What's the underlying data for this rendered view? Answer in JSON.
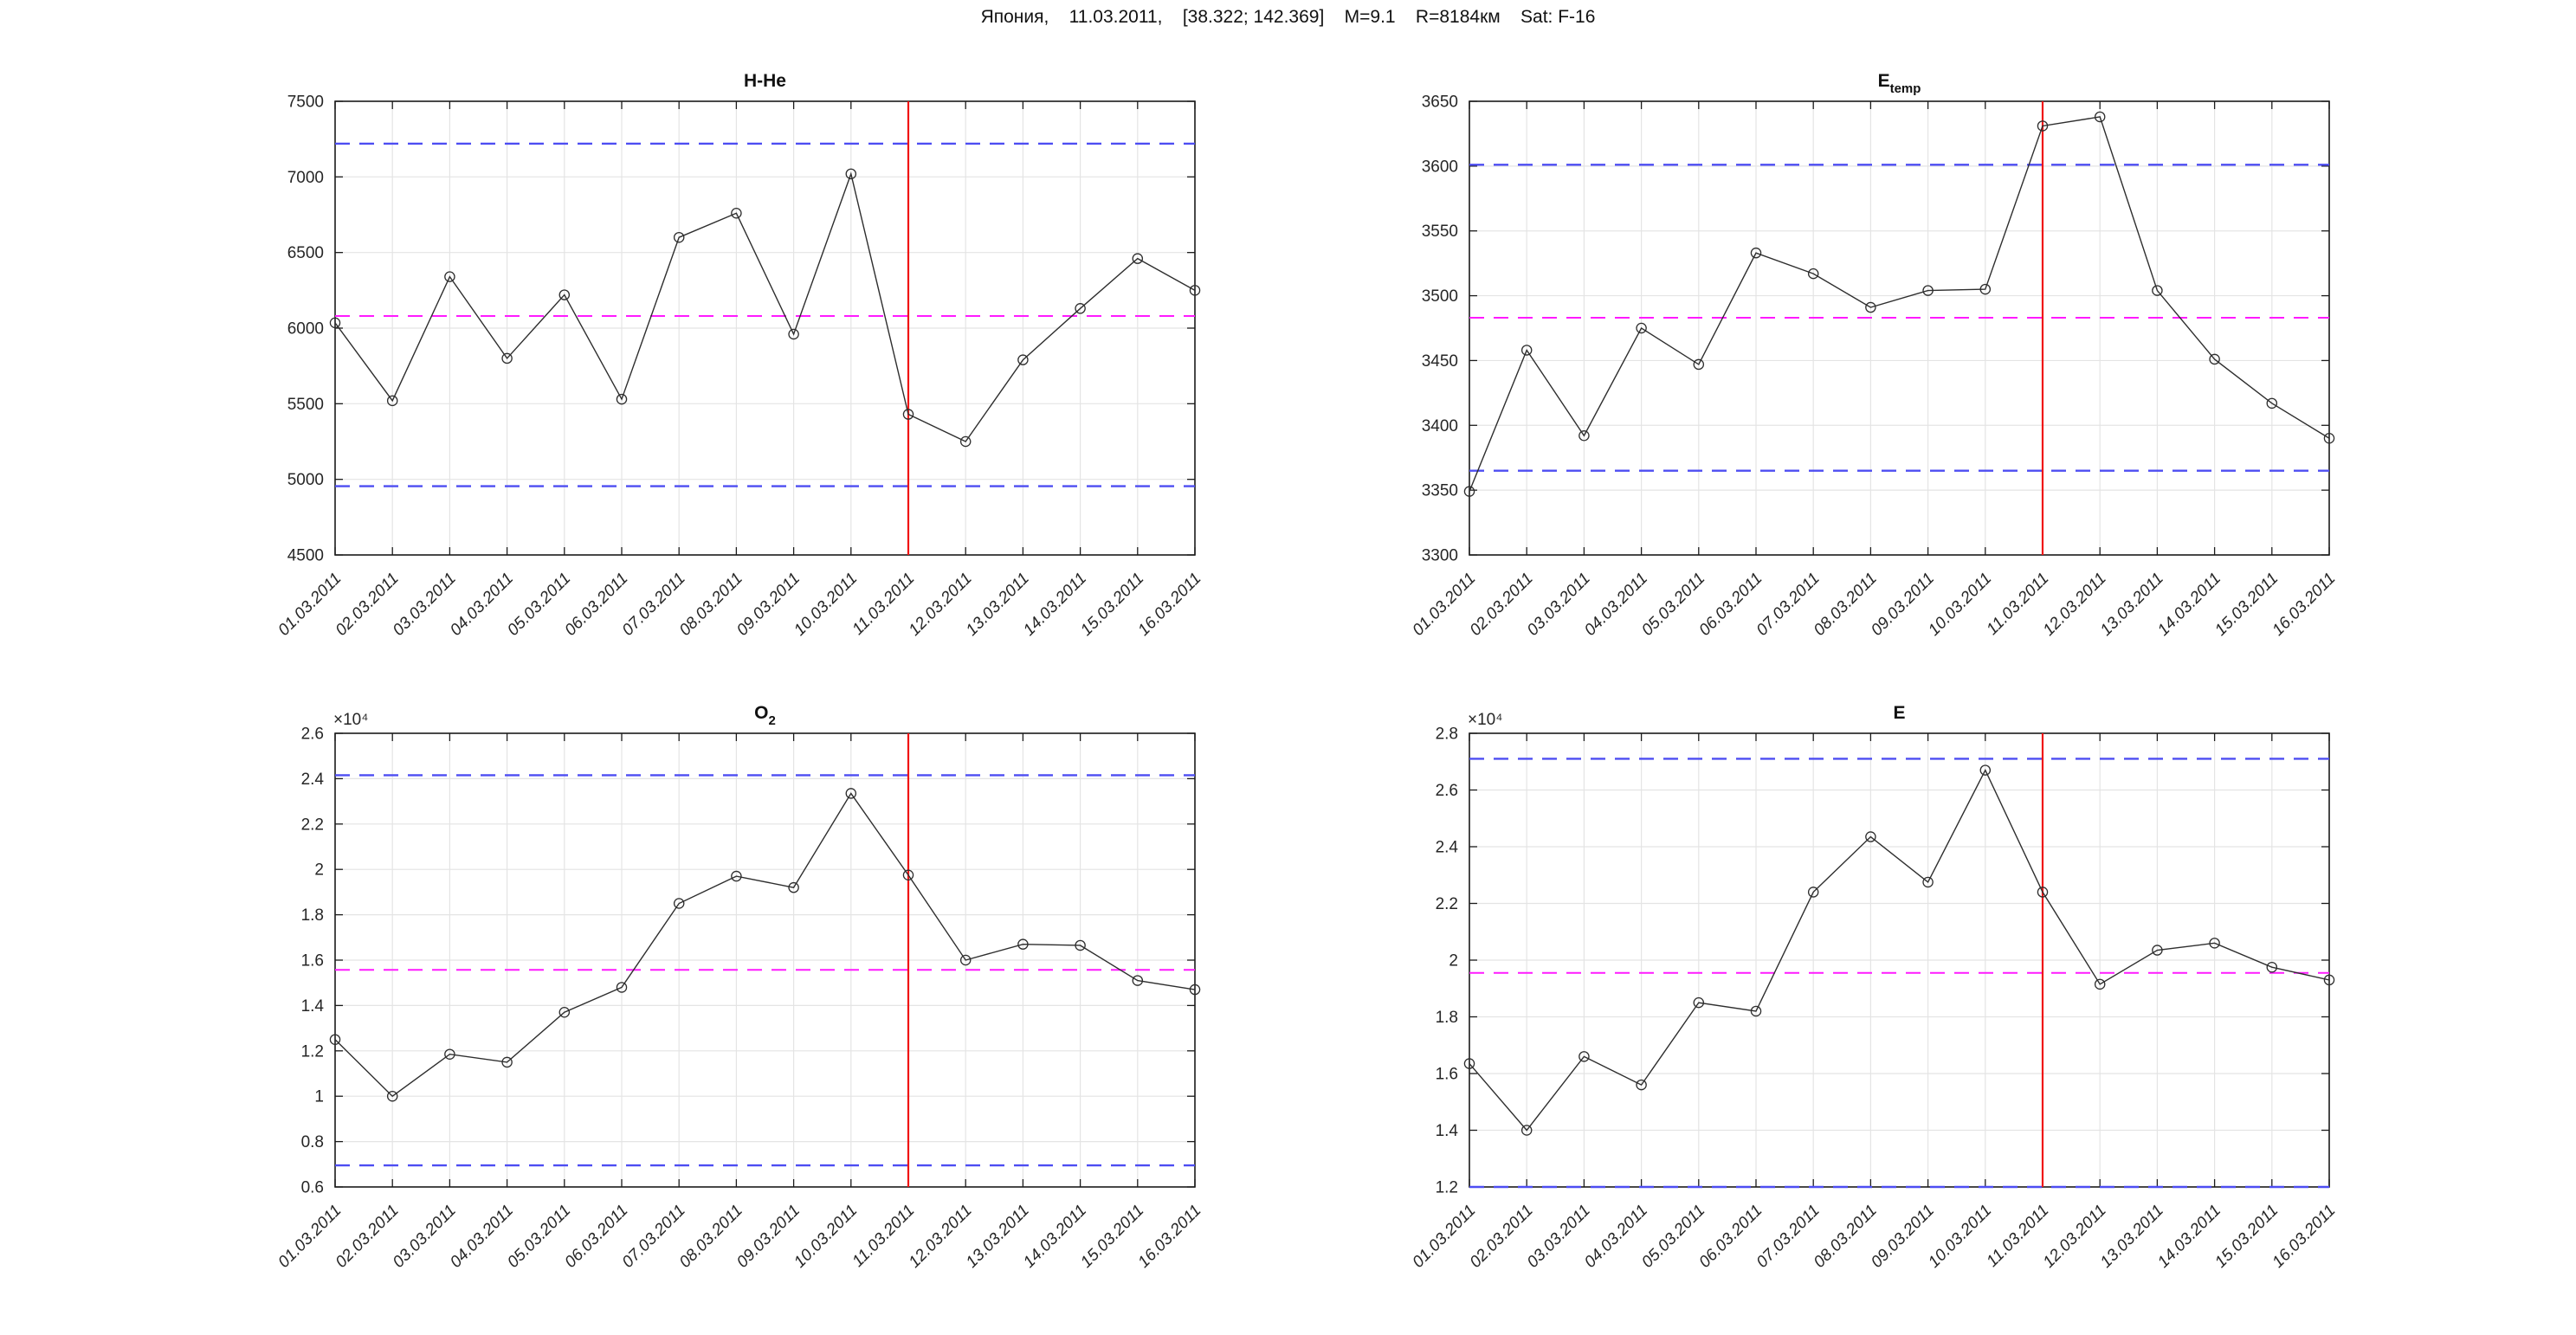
{
  "header": {
    "title": "Япония,    11.03.2011,    [38.322; 142.369]    M=9.1    R=8184км    Sat: F-16"
  },
  "colors": {
    "series_line": "#2e2e2e",
    "threshold_blue": "#4d4df2",
    "mean_magenta": "#ff1aff",
    "event_red": "#f01414",
    "grid": "#e4e4e4",
    "axis": "#1c1c1c",
    "tick_label": "#262626",
    "title_text": "#111111"
  },
  "chart_data": [
    {
      "type": "line",
      "title": {
        "main": "H-He",
        "sub": ""
      },
      "x": [
        "01.03.2011",
        "02.03.2011",
        "03.03.2011",
        "04.03.2011",
        "05.03.2011",
        "06.03.2011",
        "07.03.2011",
        "08.03.2011",
        "09.03.2011",
        "10.03.2011",
        "11.03.2011",
        "12.03.2011",
        "13.03.2011",
        "14.03.2011",
        "15.03.2011",
        "16.03.2011"
      ],
      "values": [
        6035,
        5520,
        6340,
        5800,
        6220,
        5530,
        6600,
        6760,
        5960,
        7020,
        5430,
        5250,
        5790,
        6130,
        6460,
        6250
      ],
      "ylim": [
        4500,
        7500
      ],
      "yticks": [
        4500,
        5000,
        5500,
        6000,
        6500,
        7000,
        7500
      ],
      "ytick_labels": [
        "4500",
        "5000",
        "5500",
        "6000",
        "6500",
        "7000",
        "7500"
      ],
      "y_multiplier": "",
      "thresholds": {
        "upper_blue": 7220,
        "mean_magenta": 6080,
        "lower_blue": 4955
      },
      "event_date": "11.03.2011",
      "grid": true,
      "x_label_rotation": 45,
      "marker": "open-circle"
    },
    {
      "type": "line",
      "title": {
        "main": "E",
        "sub": "temp"
      },
      "x": [
        "01.03.2011",
        "02.03.2011",
        "03.03.2011",
        "04.03.2011",
        "05.03.2011",
        "06.03.2011",
        "07.03.2011",
        "08.03.2011",
        "09.03.2011",
        "10.03.2011",
        "11.03.2011",
        "12.03.2011",
        "13.03.2011",
        "14.03.2011",
        "15.03.2011",
        "16.03.2011"
      ],
      "values": [
        3349,
        3458,
        3392,
        3475,
        3447,
        3533,
        3517,
        3491,
        3504,
        3505,
        3631,
        3638,
        3504,
        3451,
        3417,
        3390
      ],
      "ylim": [
        3300,
        3650
      ],
      "yticks": [
        3300,
        3350,
        3400,
        3450,
        3500,
        3550,
        3600,
        3650
      ],
      "ytick_labels": [
        "3300",
        "3350",
        "3400",
        "3450",
        "3500",
        "3550",
        "3600",
        "3650"
      ],
      "y_multiplier": "",
      "thresholds": {
        "upper_blue": 3601,
        "mean_magenta": 3483,
        "lower_blue": 3365
      },
      "event_date": "11.03.2011",
      "grid": true,
      "x_label_rotation": 45,
      "marker": "open-circle"
    },
    {
      "type": "line",
      "title": {
        "main": "O",
        "sub": "2"
      },
      "x": [
        "01.03.2011",
        "02.03.2011",
        "03.03.2011",
        "04.03.2011",
        "05.03.2011",
        "06.03.2011",
        "07.03.2011",
        "08.03.2011",
        "09.03.2011",
        "10.03.2011",
        "11.03.2011",
        "12.03.2011",
        "13.03.2011",
        "14.03.2011",
        "15.03.2011",
        "16.03.2011"
      ],
      "values": [
        12500,
        10000,
        11850,
        11500,
        13700,
        14800,
        18500,
        19700,
        19200,
        23350,
        19750,
        16000,
        16700,
        16650,
        15100,
        14700
      ],
      "ylim": [
        6000,
        26000
      ],
      "yticks": [
        6000,
        8000,
        10000,
        12000,
        14000,
        16000,
        18000,
        20000,
        22000,
        24000,
        26000
      ],
      "ytick_labels": [
        "0.6",
        "0.8",
        "1",
        "1.2",
        "1.4",
        "1.6",
        "1.8",
        "2",
        "2.2",
        "2.4",
        "2.6"
      ],
      "y_multiplier": "×10⁴",
      "thresholds": {
        "upper_blue": 24150,
        "mean_magenta": 15570,
        "lower_blue": 6950
      },
      "event_date": "11.03.2011",
      "grid": true,
      "x_label_rotation": 45,
      "marker": "open-circle"
    },
    {
      "type": "line",
      "title": {
        "main": "E",
        "sub": ""
      },
      "x": [
        "01.03.2011",
        "02.03.2011",
        "03.03.2011",
        "04.03.2011",
        "05.03.2011",
        "06.03.2011",
        "07.03.2011",
        "08.03.2011",
        "09.03.2011",
        "10.03.2011",
        "11.03.2011",
        "12.03.2011",
        "13.03.2011",
        "14.03.2011",
        "15.03.2011",
        "16.03.2011"
      ],
      "values": [
        16350,
        14000,
        16600,
        15600,
        18500,
        18200,
        22400,
        24350,
        22750,
        26700,
        22400,
        19150,
        20350,
        20600,
        19750,
        19300
      ],
      "ylim": [
        12000,
        28000
      ],
      "yticks": [
        12000,
        14000,
        16000,
        18000,
        20000,
        22000,
        24000,
        26000,
        28000
      ],
      "ytick_labels": [
        "1.2",
        "1.4",
        "1.6",
        "1.8",
        "2",
        "2.2",
        "2.4",
        "2.6",
        "2.8"
      ],
      "y_multiplier": "×10⁴",
      "thresholds": {
        "upper_blue": 27100,
        "mean_magenta": 19550,
        "lower_blue": 12000
      },
      "event_date": "11.03.2011",
      "grid": true,
      "x_label_rotation": 45,
      "marker": "open-circle"
    }
  ]
}
